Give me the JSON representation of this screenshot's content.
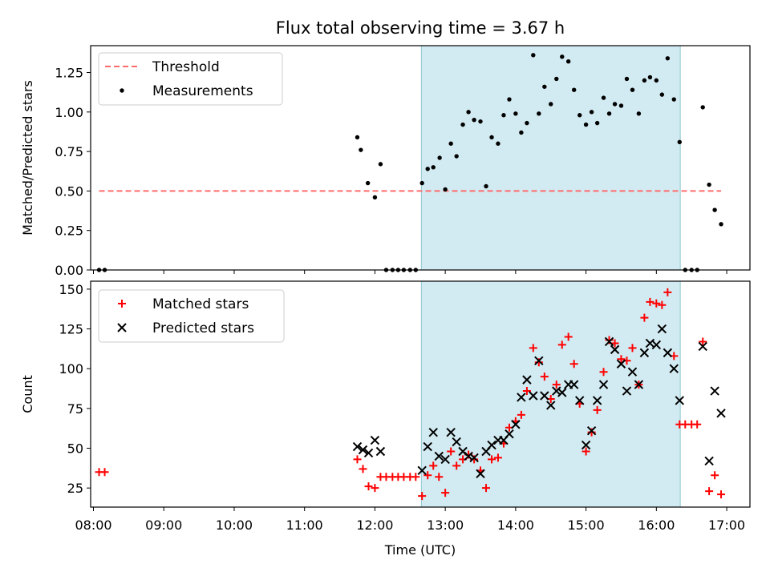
{
  "title": "Flux total observing time = 3.67 h",
  "colors": {
    "threshold": "#ff6b6b",
    "band": "#add8e6",
    "measurement": "#000000",
    "matched": "#ff0000",
    "predicted": "#000000"
  },
  "chart_data": [
    {
      "type": "scatter",
      "panel": "top",
      "ylabel": "Matched/Predicted stars",
      "ylim": [
        0,
        1.42
      ],
      "yticks": [
        "0.00",
        "0.25",
        "0.50",
        "0.75",
        "1.00",
        "1.25"
      ],
      "xlim": [
        7.96,
        17.33
      ],
      "xticks": [
        "08:00",
        "09:00",
        "10:00",
        "11:00",
        "12:00",
        "13:00",
        "14:00",
        "15:00",
        "16:00",
        "17:00"
      ],
      "shaded_region": [
        12.66,
        16.34
      ],
      "legend": {
        "location": "top-left",
        "entries": [
          "Threshold",
          "Measurements"
        ]
      },
      "threshold": {
        "name": "Threshold",
        "y": 0.5,
        "x": [
          8.08,
          16.92
        ]
      },
      "series": [
        {
          "name": "Measurements",
          "x": [
            8.08,
            8.16,
            11.75,
            11.8,
            11.9,
            12.0,
            12.08,
            12.16,
            12.25,
            12.33,
            12.41,
            12.5,
            12.58,
            12.67,
            12.75,
            12.83,
            12.92,
            13.0,
            13.08,
            13.16,
            13.25,
            13.33,
            13.41,
            13.5,
            13.58,
            13.66,
            13.75,
            13.83,
            13.91,
            14.0,
            14.08,
            14.16,
            14.25,
            14.33,
            14.41,
            14.5,
            14.58,
            14.66,
            14.75,
            14.83,
            14.91,
            15.0,
            15.08,
            15.16,
            15.25,
            15.33,
            15.41,
            15.5,
            15.58,
            15.66,
            15.75,
            15.83,
            15.91,
            16.0,
            16.08,
            16.16,
            16.25,
            16.33,
            16.41,
            16.5,
            16.58,
            16.66,
            16.75,
            16.83,
            16.92
          ],
          "y": [
            0.0,
            0.0,
            0.84,
            0.76,
            0.55,
            0.46,
            0.67,
            0.0,
            0.0,
            0.0,
            0.0,
            0.0,
            0.0,
            0.55,
            0.64,
            0.65,
            0.71,
            0.51,
            0.8,
            0.72,
            0.92,
            1.0,
            0.95,
            0.94,
            0.53,
            0.84,
            0.8,
            0.98,
            1.08,
            0.99,
            0.87,
            0.93,
            1.36,
            0.99,
            1.16,
            1.05,
            1.21,
            1.35,
            1.32,
            1.14,
            0.98,
            0.92,
            1.0,
            0.93,
            1.09,
            0.99,
            1.05,
            1.04,
            1.21,
            1.14,
            0.99,
            1.2,
            1.22,
            1.2,
            1.11,
            1.34,
            1.08,
            0.81,
            0.0,
            0.0,
            0.0,
            1.03,
            0.54,
            0.38,
            0.29
          ]
        }
      ]
    },
    {
      "type": "scatter",
      "panel": "bottom",
      "xlabel": "Time (UTC)",
      "ylabel": "Count",
      "ylim": [
        13,
        155
      ],
      "yticks": [
        "25",
        "50",
        "75",
        "100",
        "125",
        "150"
      ],
      "xlim": [
        7.96,
        17.33
      ],
      "xticks": [
        "08:00",
        "09:00",
        "10:00",
        "11:00",
        "12:00",
        "13:00",
        "14:00",
        "15:00",
        "16:00",
        "17:00"
      ],
      "shaded_region": [
        12.66,
        16.34
      ],
      "legend": {
        "location": "top-left",
        "entries": [
          "Matched stars",
          "Predicted stars"
        ]
      },
      "series": [
        {
          "name": "Matched stars",
          "marker": "+",
          "x": [
            8.08,
            8.16,
            11.75,
            11.83,
            11.91,
            12.0,
            12.08,
            12.16,
            12.25,
            12.33,
            12.41,
            12.5,
            12.58,
            12.67,
            12.75,
            12.83,
            12.91,
            13.0,
            13.08,
            13.16,
            13.25,
            13.33,
            13.41,
            13.5,
            13.58,
            13.66,
            13.75,
            13.83,
            13.91,
            14.0,
            14.08,
            14.16,
            14.25,
            14.33,
            14.41,
            14.5,
            14.58,
            14.66,
            14.75,
            14.83,
            14.91,
            15.0,
            15.08,
            15.16,
            15.25,
            15.33,
            15.41,
            15.5,
            15.58,
            15.66,
            15.75,
            15.83,
            15.91,
            16.0,
            16.08,
            16.16,
            16.25,
            16.33,
            16.41,
            16.5,
            16.58,
            16.66,
            16.75,
            16.83,
            16.92
          ],
          "y": [
            35,
            35,
            43,
            37,
            26,
            25,
            32,
            32,
            32,
            32,
            32,
            32,
            32,
            20,
            33,
            39,
            32,
            22,
            48,
            39,
            43,
            46,
            43,
            36,
            25,
            43,
            44,
            53,
            63,
            67,
            71,
            86,
            113,
            104,
            95,
            81,
            90,
            115,
            120,
            103,
            78,
            48,
            60,
            74,
            98,
            118,
            116,
            106,
            105,
            113,
            90,
            132,
            142,
            141,
            140,
            148,
            108,
            65,
            65,
            65,
            65,
            117,
            23,
            33,
            21
          ]
        },
        {
          "name": "Predicted stars",
          "marker": "x",
          "x": [
            11.75,
            11.83,
            11.91,
            12.0,
            12.08,
            12.67,
            12.75,
            12.83,
            12.91,
            13.0,
            13.08,
            13.16,
            13.25,
            13.33,
            13.41,
            13.5,
            13.58,
            13.66,
            13.75,
            13.83,
            13.91,
            14.0,
            14.08,
            14.16,
            14.25,
            14.33,
            14.41,
            14.5,
            14.58,
            14.66,
            14.75,
            14.83,
            14.91,
            15.0,
            15.08,
            15.16,
            15.25,
            15.33,
            15.41,
            15.5,
            15.58,
            15.66,
            15.75,
            15.83,
            15.91,
            16.0,
            16.08,
            16.16,
            16.25,
            16.33,
            16.66,
            16.75,
            16.83,
            16.92
          ],
          "y": [
            51,
            49,
            47,
            55,
            48,
            36,
            51,
            60,
            45,
            43,
            60,
            54,
            48,
            45,
            44,
            34,
            48,
            52,
            55,
            55,
            59,
            65,
            82,
            93,
            83,
            105,
            83,
            77,
            86,
            85,
            90,
            90,
            80,
            52,
            61,
            80,
            90,
            117,
            112,
            103,
            86,
            98,
            90,
            110,
            116,
            115,
            125,
            110,
            100,
            80,
            114,
            42,
            86,
            72
          ]
        }
      ]
    }
  ]
}
